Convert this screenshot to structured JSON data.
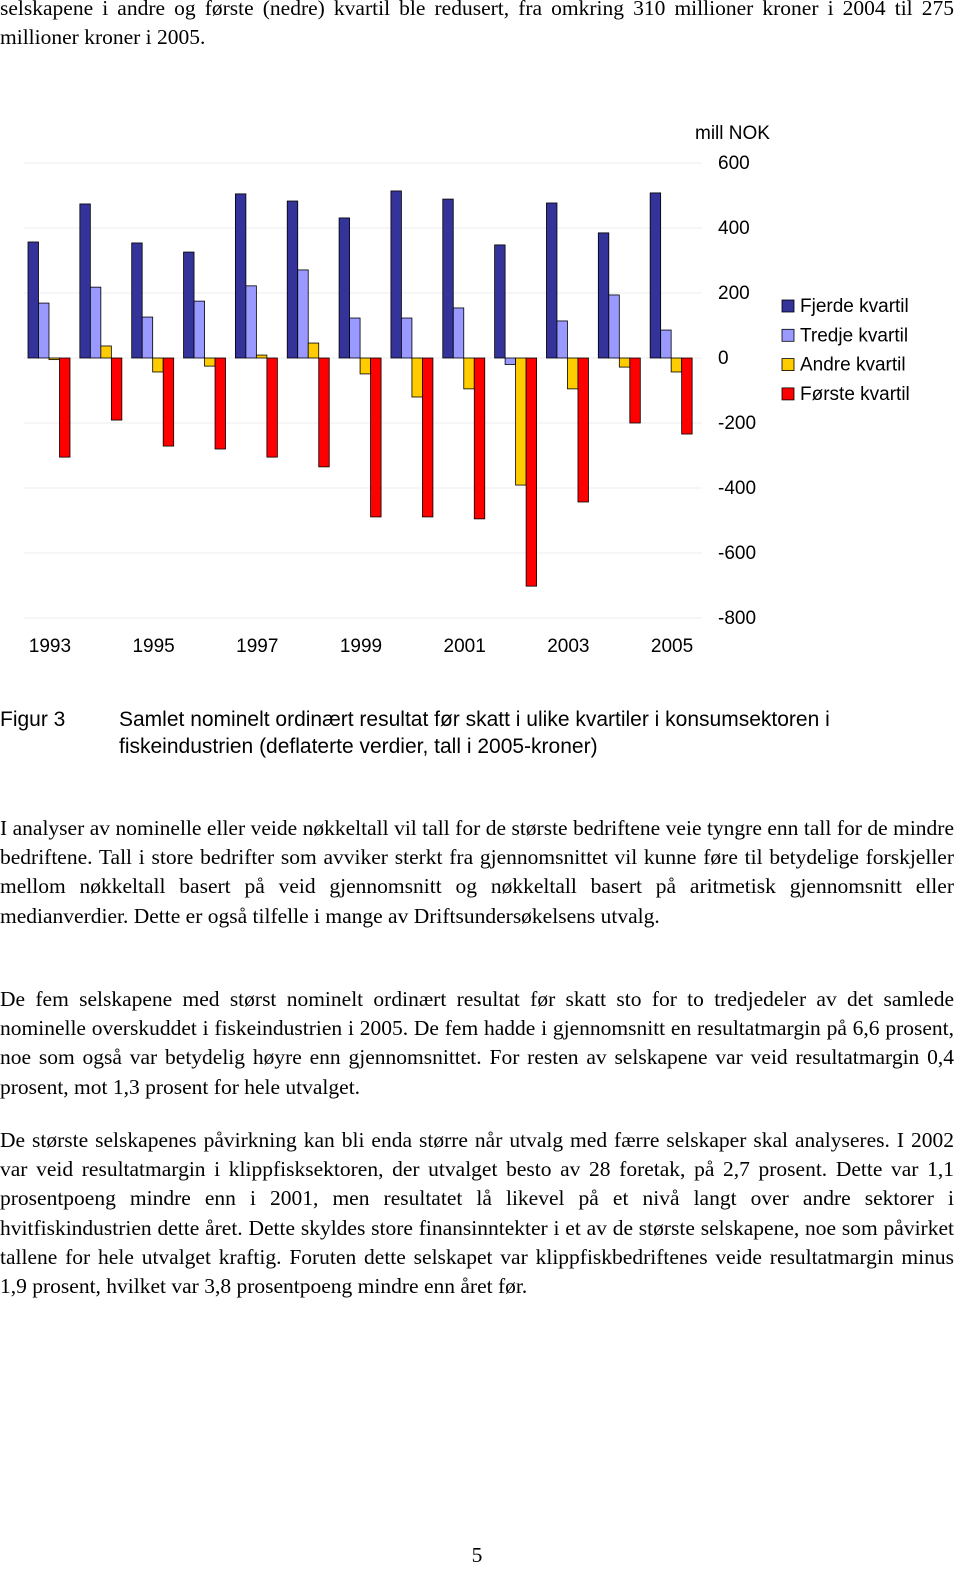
{
  "intro": "selskapene i andre og første (nedre) kvartil ble redusert, fra omkring 310 millioner kroner i 2004 til 275 millioner kroner i 2005.",
  "chart_data": {
    "type": "bar",
    "y_label": "mill NOK",
    "categories": [
      "1993",
      null,
      "1995",
      null,
      "1997",
      null,
      "1999",
      null,
      "2001",
      null,
      "2003",
      null,
      "2005"
    ],
    "series": [
      {
        "name": "Fjerde kvartil",
        "color": "#333399",
        "values": [
          357,
          474,
          354,
          326,
          505,
          483,
          431,
          514,
          489,
          348,
          477,
          385,
          508
        ]
      },
      {
        "name": "Tredje kvartil",
        "color": "#9999ff",
        "values": [
          169,
          218,
          126,
          175,
          222,
          271,
          123,
          123,
          154,
          -20,
          114,
          194,
          86
        ]
      },
      {
        "name": "Andre kvartil",
        "color": "#ffcc00",
        "values": [
          -5,
          37,
          -43,
          -25,
          9,
          46,
          -49,
          -120,
          -95,
          -391,
          -95,
          -28,
          -43
        ]
      },
      {
        "name": "Første kvartil",
        "color": "#ff0000",
        "values": [
          -305,
          -191,
          -271,
          -280,
          -305,
          -335,
          -489,
          -489,
          -495,
          -702,
          -443,
          -200,
          -234
        ]
      }
    ],
    "ylim": [
      -800,
      600
    ],
    "yticks": [
      600,
      400,
      200,
      0,
      -200,
      -400,
      -600,
      -800
    ],
    "grid": true,
    "legend": "right"
  },
  "caption": {
    "label": "Figur 3",
    "text": "Samlet nominelt ordinært resultat før skatt i ulike kvartiler i konsumsektoren i fiskeindustrien (deflaterte verdier, tall i 2005-kroner)"
  },
  "paragraphs": [
    "I analyser av nominelle eller veide nøkkeltall vil tall for de største bedriftene veie tyngre enn tall for de mindre bedriftene. Tall i store bedrifter som avviker sterkt fra gjennomsnittet vil kunne føre til betydelige forskjeller mellom nøkkeltall basert på veid gjennomsnitt og nøkkeltall basert på aritmetisk gjennomsnitt eller medianverdier. Dette er også tilfelle i mange av Driftsundersøkelsens utvalg.",
    "De fem selskapene med størst nominelt ordinært resultat før skatt sto for to tredjedeler av det samlede nominelle overskuddet i fiskeindustrien i 2005. De fem hadde i gjennomsnitt en resultatmargin på 6,6 prosent, noe som også var betydelig høyre enn gjennomsnittet. For resten av selskapene var veid resultatmargin 0,4 prosent, mot 1,3 prosent for hele utvalget.",
    "De største selskapenes påvirkning kan bli enda større når utvalg med færre selskaper skal analyseres. I 2002 var veid resultatmargin i klippfisksektoren, der utvalget besto av 28 foretak, på 2,7 prosent. Dette var 1,1 prosentpoeng mindre enn i 2001, men resultatet lå likevel på et nivå langt over andre sektorer i hvitfiskindustrien dette året. Dette skyldes store finansinntekter i et av de største selskapene, noe som påvirket tallene for hele utvalget kraftig. Foruten dette selskapet var klippfiskbedriftenes veide resultatmargin minus 1,9 prosent, hvilket var 3,8 prosentpoeng mindre enn året før."
  ],
  "page_number": "5"
}
